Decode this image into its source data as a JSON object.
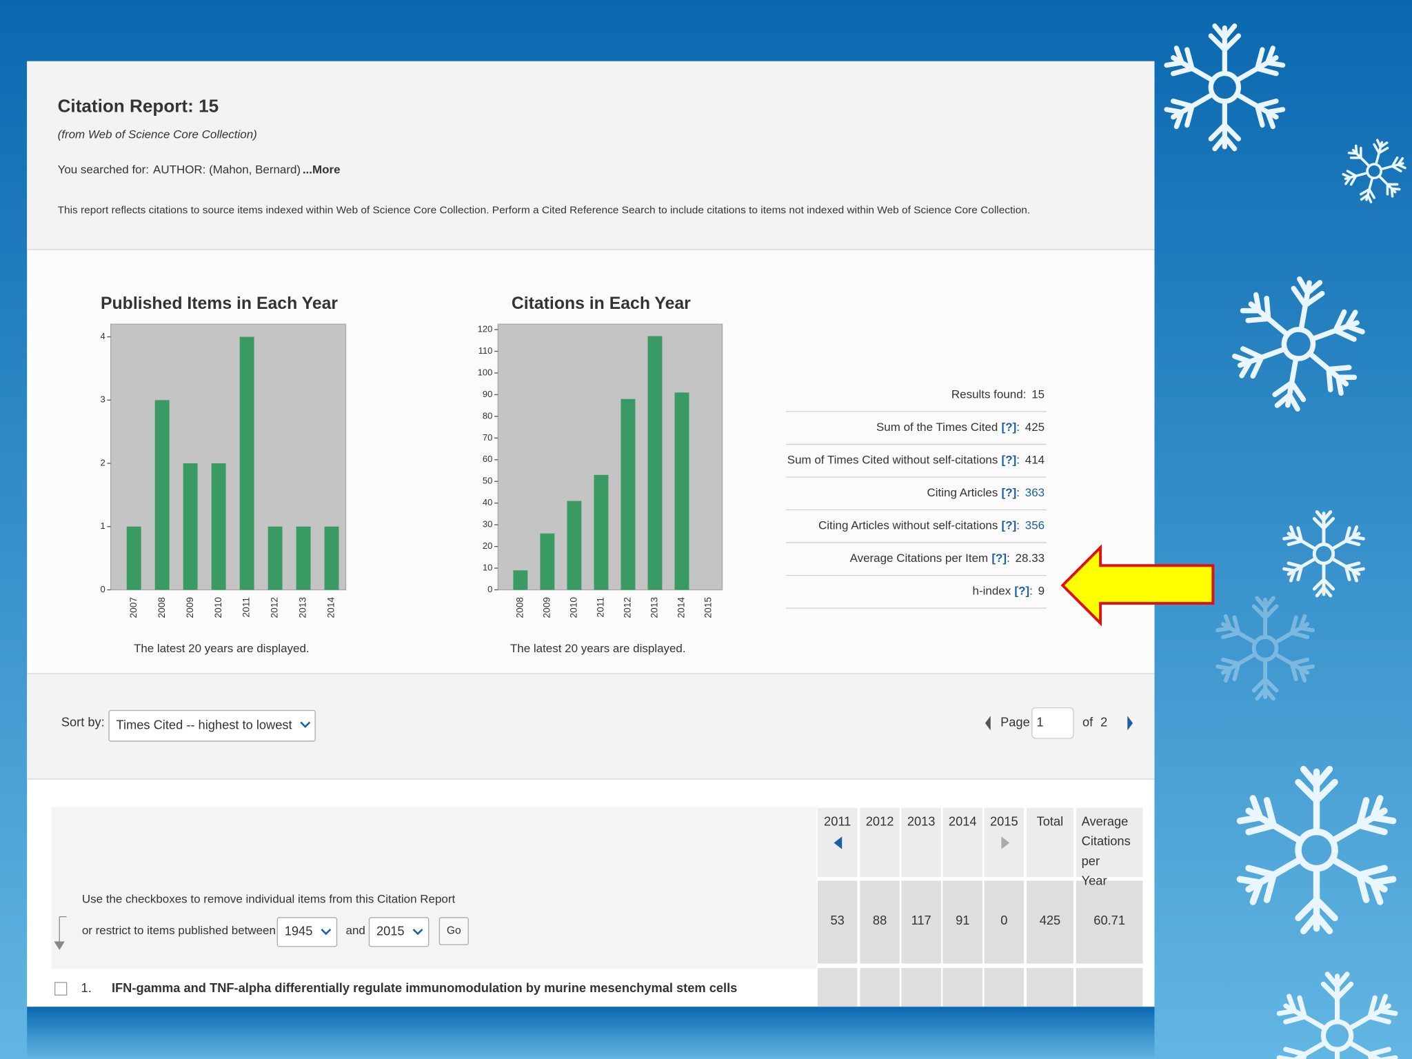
{
  "header": {
    "title": "Citation Report: 15",
    "source": "(from Web of Science Core Collection)",
    "searched_label": "You searched for:",
    "query": "AUTHOR: (Mahon, Bernard)",
    "more": "...More",
    "note": "This report reflects citations to source items indexed within Web of Science Core Collection. Perform a Cited Reference Search to include citations to items not indexed within Web of Science Core Collection."
  },
  "chart_data": [
    {
      "type": "bar",
      "title": "Published Items in Each Year",
      "categories": [
        "2007",
        "2008",
        "2009",
        "2010",
        "2011",
        "2012",
        "2013",
        "2014"
      ],
      "values": [
        1,
        3,
        2,
        2,
        4,
        1,
        1,
        1
      ],
      "ylim": [
        0,
        4.2
      ],
      "yticks": [
        0,
        1,
        2,
        3,
        4
      ],
      "color": "#3a9a64",
      "footnote": "The latest 20 years are displayed."
    },
    {
      "type": "bar",
      "title": "Citations in Each Year",
      "categories": [
        "2008",
        "2009",
        "2010",
        "2011",
        "2012",
        "2013",
        "2014",
        "2015"
      ],
      "values": [
        9,
        26,
        41,
        53,
        88,
        117,
        91,
        0
      ],
      "ylim": [
        0,
        122.5
      ],
      "yticks": [
        0,
        10,
        20,
        30,
        40,
        50,
        60,
        70,
        80,
        90,
        100,
        110,
        120
      ],
      "color": "#3a9a64",
      "footnote": "The latest 20 years are displayed."
    }
  ],
  "stats": {
    "help": "[?]",
    "sep": ":",
    "rows": [
      {
        "label": "Results found:",
        "value": "15"
      },
      {
        "label": "Sum of the Times Cited",
        "value": "425"
      },
      {
        "label": "Sum of Times Cited without self-citations",
        "value": "414"
      },
      {
        "label": "Citing Articles",
        "value": "363",
        "link": true
      },
      {
        "label": "Citing Articles without self-citations",
        "value": "356",
        "link": true
      },
      {
        "label": "Average Citations per Item",
        "value": "28.33"
      },
      {
        "label": "h-index",
        "value": "9"
      }
    ]
  },
  "sort": {
    "label": "Sort by:",
    "value": "Times Cited -- highest to lowest"
  },
  "pager": {
    "page_label": "Page",
    "page": "1",
    "of": "of",
    "total": "2"
  },
  "filter": {
    "hint": "Use the checkboxes to remove individual items from this Citation Report",
    "restrict": "or restrict to items published between",
    "from": "1945",
    "and": "and",
    "to": "2015",
    "go": "Go"
  },
  "table": {
    "headers": [
      "2011",
      "2012",
      "2013",
      "2014",
      "2015",
      "Total",
      "Average Citations per Year"
    ],
    "totals": [
      "53",
      "88",
      "117",
      "91",
      "0",
      "425",
      "60.71"
    ]
  },
  "items": [
    {
      "number": "1.",
      "title": "IFN-gamma and TNF-alpha differentially regulate immunomodulation by murine mesenchymal stem cells"
    }
  ]
}
